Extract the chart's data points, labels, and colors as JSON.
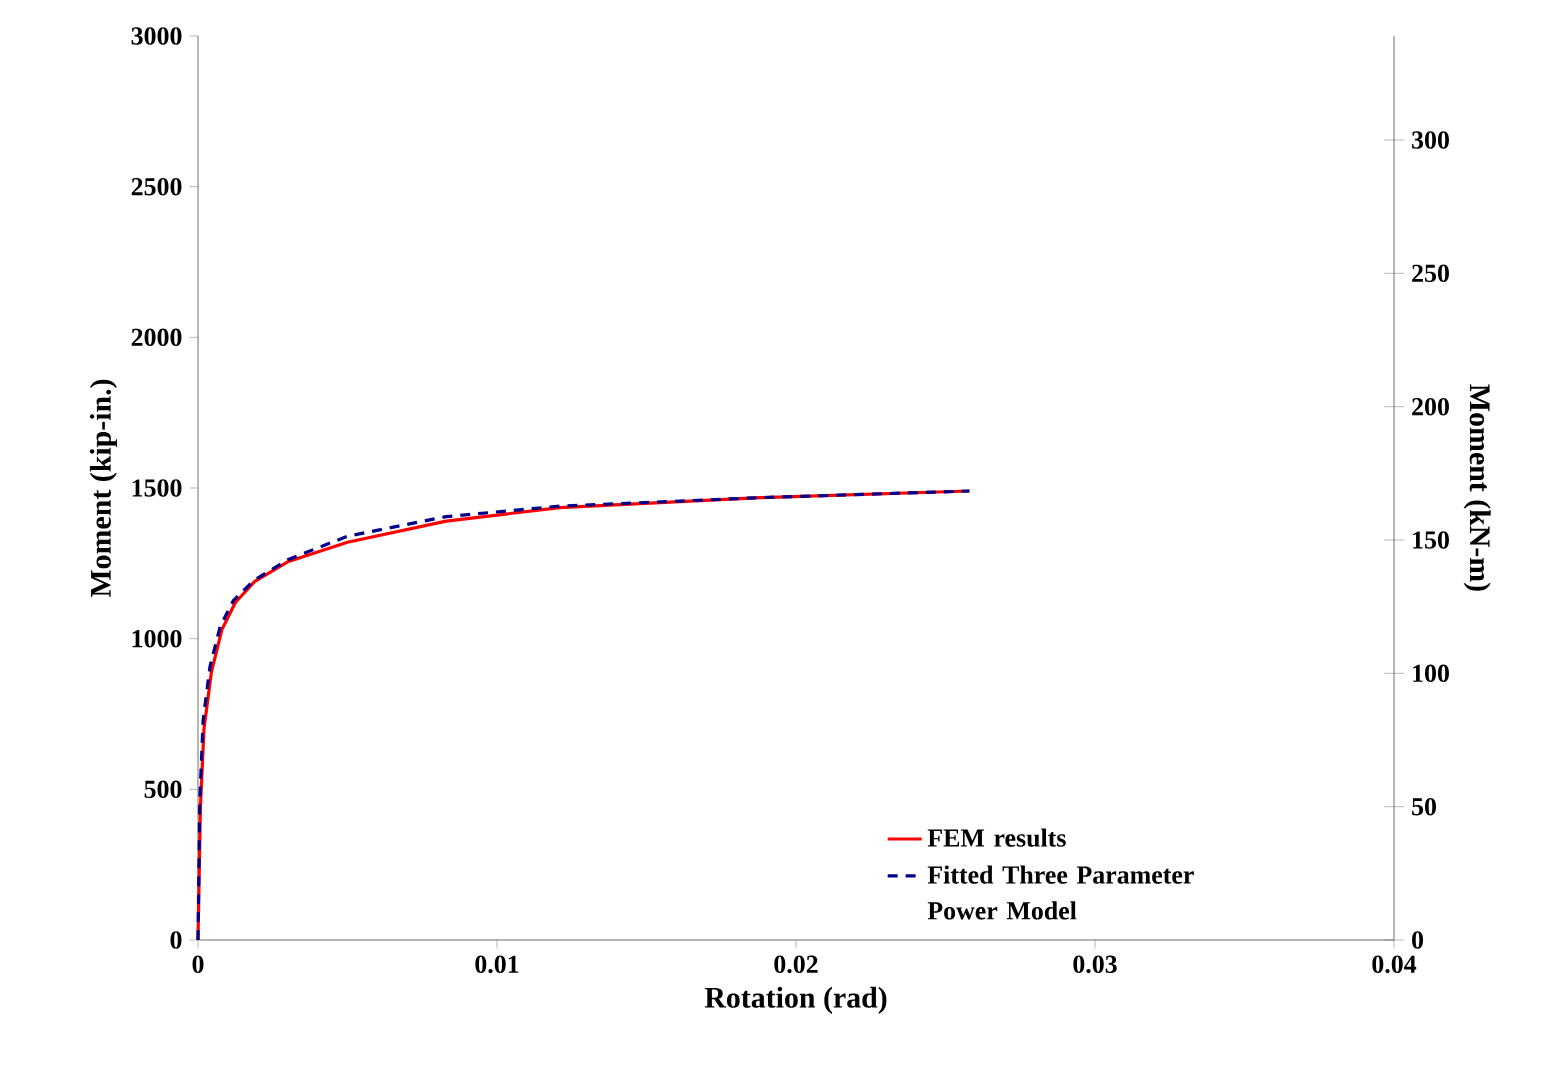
{
  "chart_data": {
    "type": "line",
    "xlabel": "Rotation (rad)",
    "ylabel": "Moment (kip-in.)",
    "y2label": "Moment (kN-m)",
    "xlim": [
      0,
      0.04
    ],
    "xticks": [
      0,
      0.01,
      0.02,
      0.03,
      0.04
    ],
    "ylim": [
      0,
      3000
    ],
    "yticks": [
      0,
      500,
      1000,
      1500,
      2000,
      2500,
      3000
    ],
    "y2lim": [
      0,
      339
    ],
    "y2ticks": [
      0,
      50,
      100,
      150,
      200,
      250,
      300
    ],
    "legend": "bottom right",
    "series": [
      {
        "name": "FEM results",
        "color": "#ff0000",
        "line_style": "solid",
        "x": [
          0,
          8e-05,
          0.0002,
          0.00045,
          0.0008,
          0.00125,
          0.0019,
          0.003,
          0.005,
          0.0083,
          0.0121,
          0.0188,
          0.0258
        ],
        "values": [
          0,
          440,
          700,
          890,
          1030,
          1120,
          1190,
          1255,
          1320,
          1390,
          1435,
          1468,
          1490
        ]
      },
      {
        "name": "Fitted Three Parameter Power Model",
        "color": "#00008b",
        "line_style": "dashed",
        "x": [
          0,
          6e-05,
          0.00017,
          0.0004,
          0.00074,
          0.00118,
          0.00185,
          0.003,
          0.005,
          0.0083,
          0.0121,
          0.0188,
          0.0258
        ],
        "values": [
          0,
          464,
          728,
          907,
          1040,
          1126,
          1192,
          1262,
          1340,
          1405,
          1440,
          1468,
          1490
        ]
      }
    ]
  }
}
